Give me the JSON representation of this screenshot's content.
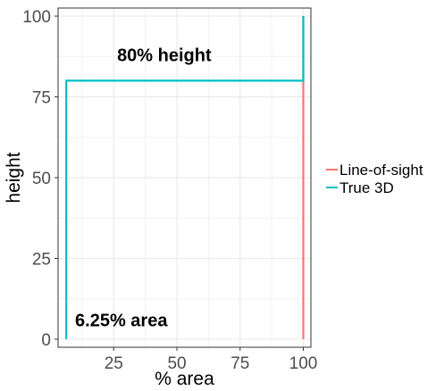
{
  "chart_data": {
    "type": "line",
    "title": "",
    "xlabel": "% area",
    "ylabel": "height",
    "xlim": [
      3,
      103
    ],
    "ylim": [
      -2.5,
      102.5
    ],
    "x_ticks": [
      25,
      50,
      75,
      100
    ],
    "y_ticks": [
      0,
      25,
      50,
      75,
      100
    ],
    "grid": true,
    "legend_position": "right",
    "series": [
      {
        "name": "Line-of-sight",
        "color": "#F8766D",
        "points": [
          [
            100,
            0
          ],
          [
            100,
            80
          ],
          [
            100,
            100
          ]
        ]
      },
      {
        "name": "True 3D",
        "color": "#00BFC4",
        "points": [
          [
            6.25,
            0
          ],
          [
            6.25,
            80
          ],
          [
            100,
            80
          ],
          [
            100,
            100
          ]
        ]
      }
    ],
    "annotations": [
      {
        "text": "80% height",
        "x": 45,
        "y": 86
      },
      {
        "text": "6.25% area",
        "x": 28,
        "y": 4
      }
    ]
  }
}
